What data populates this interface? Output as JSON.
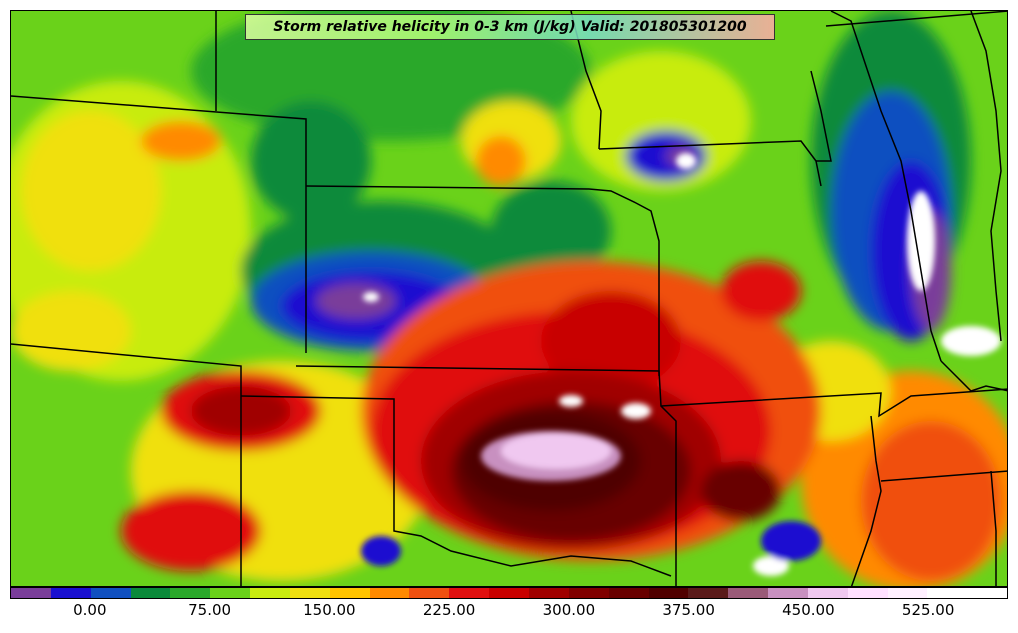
{
  "map": {
    "title": "Storm relative helicity in 0-3 km (J/kg) Valid: 201805301200",
    "variable": "Storm relative helicity in 0-3 km",
    "units": "J/kg",
    "valid_time": "201805301200"
  },
  "colorbar": {
    "colors": [
      "#7a3d9a",
      "#1a10d0",
      "#1050c0",
      "#0a8a3a",
      "#2aa82a",
      "#6ad21a",
      "#c8ec10",
      "#f0e010",
      "#ffc400",
      "#ff8a00",
      "#f05010",
      "#e01010",
      "#c80000",
      "#a00000",
      "#800000",
      "#680000",
      "#500000",
      "#5a1a1a",
      "#9a5a78",
      "#c890c0",
      "#f0c8f0",
      "#ffe0ff",
      "#fff0ff",
      "#ffffff",
      "#ffffff"
    ],
    "tick_labels": [
      "0.00",
      "75.00",
      "150.00",
      "225.00",
      "300.00",
      "375.00",
      "450.00",
      "525.00"
    ],
    "tick_values": [
      0,
      75,
      150,
      225,
      300,
      375,
      450,
      525
    ],
    "min": -50,
    "max": 575
  }
}
